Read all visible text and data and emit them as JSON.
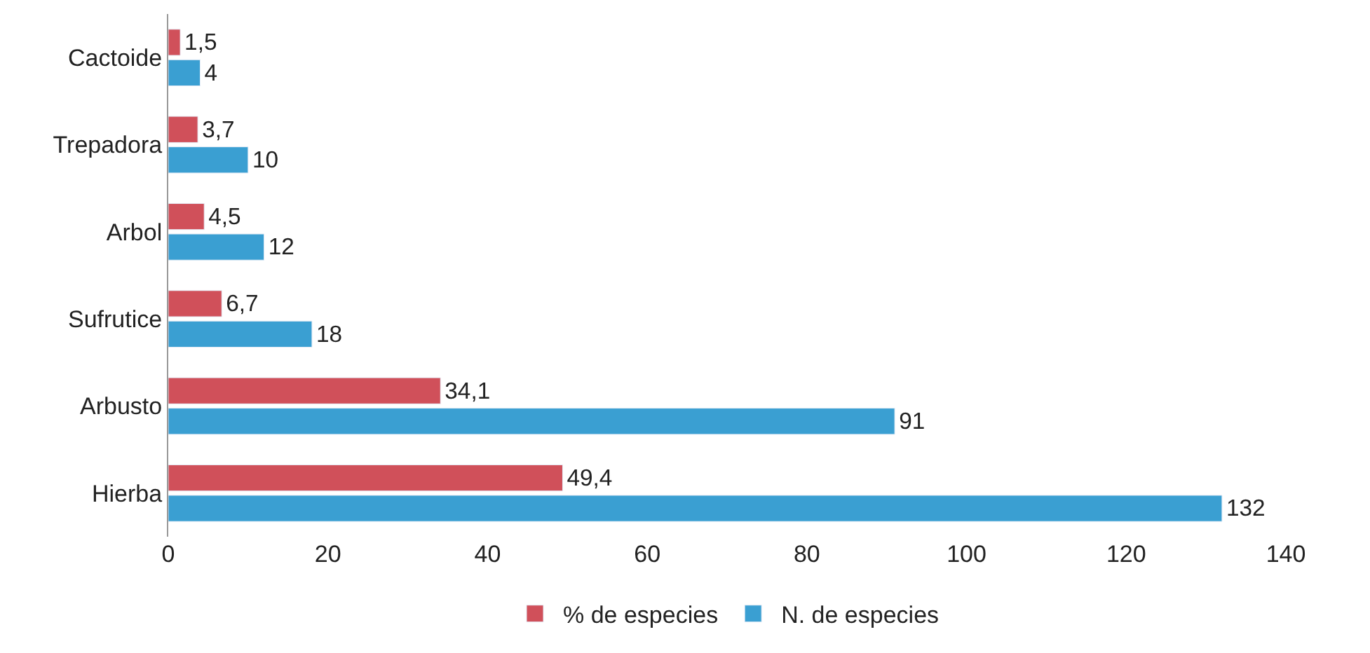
{
  "chart_data": {
    "type": "bar",
    "orientation": "horizontal",
    "categories": [
      "Cactoide",
      "Trepadora",
      "Arbol",
      "Sufrutice",
      "Arbusto",
      "Hierba"
    ],
    "series": [
      {
        "name": "% de especies",
        "color": "#d0505a",
        "values": [
          1.5,
          3.7,
          4.5,
          6.7,
          34.1,
          49.4
        ],
        "value_labels": [
          "1,5",
          "3,7",
          "4,5",
          "6,7",
          "34,1",
          "49,4"
        ]
      },
      {
        "name": "N. de especies",
        "color": "#3a9fd2",
        "values": [
          4,
          10,
          12,
          18,
          91,
          132
        ],
        "value_labels": [
          "4",
          "10",
          "12",
          "18",
          "91",
          "132"
        ]
      }
    ],
    "xlim": [
      0,
      140
    ],
    "xticks": [
      0,
      20,
      40,
      60,
      80,
      100,
      120,
      140
    ],
    "legend": "bottom"
  }
}
